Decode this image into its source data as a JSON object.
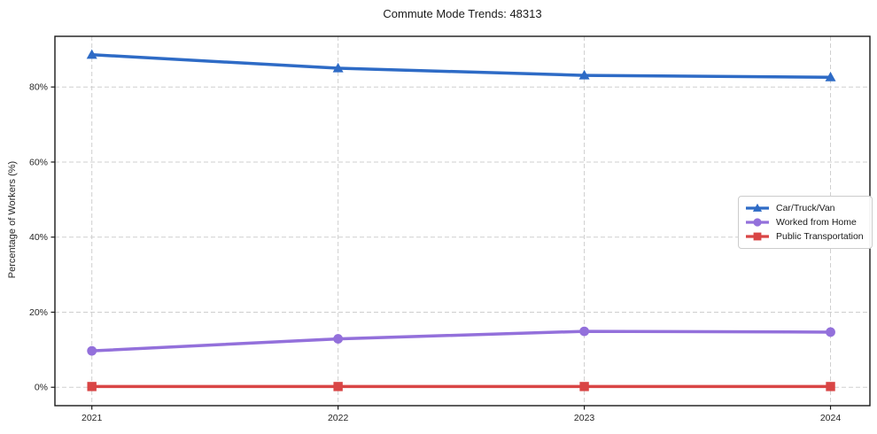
{
  "chart_data": {
    "type": "line",
    "title": "Commute Mode Trends: 48313",
    "xlabel": "",
    "ylabel": "Percentage of Workers (%)",
    "categories": [
      "2021",
      "2022",
      "2023",
      "2024"
    ],
    "x_values": [
      2021,
      2022,
      2023,
      2024
    ],
    "series": [
      {
        "name": "Car/Truck/Van",
        "color": "#2e6bc6",
        "marker": "triangle",
        "values": [
          88.6,
          85.0,
          83.1,
          82.6
        ]
      },
      {
        "name": "Worked from Home",
        "color": "#9370db",
        "marker": "circle",
        "values": [
          9.7,
          12.9,
          14.9,
          14.7
        ]
      },
      {
        "name": "Public Transportation",
        "color": "#d94545",
        "marker": "square",
        "values": [
          0.2,
          0.2,
          0.2,
          0.2
        ]
      }
    ],
    "yticks": {
      "values": [
        0,
        20,
        40,
        60,
        80
      ],
      "labels": [
        "0%",
        "20%",
        "40%",
        "60%",
        "80%"
      ]
    },
    "ylim": [
      -4.9,
      93.5
    ],
    "xlim": [
      2020.85,
      2024.16
    ],
    "grid": "dashed-both-axes",
    "grid_color": "#cfcfcf",
    "spine_color": "#1a1a1a",
    "legend_position": "right-center"
  }
}
